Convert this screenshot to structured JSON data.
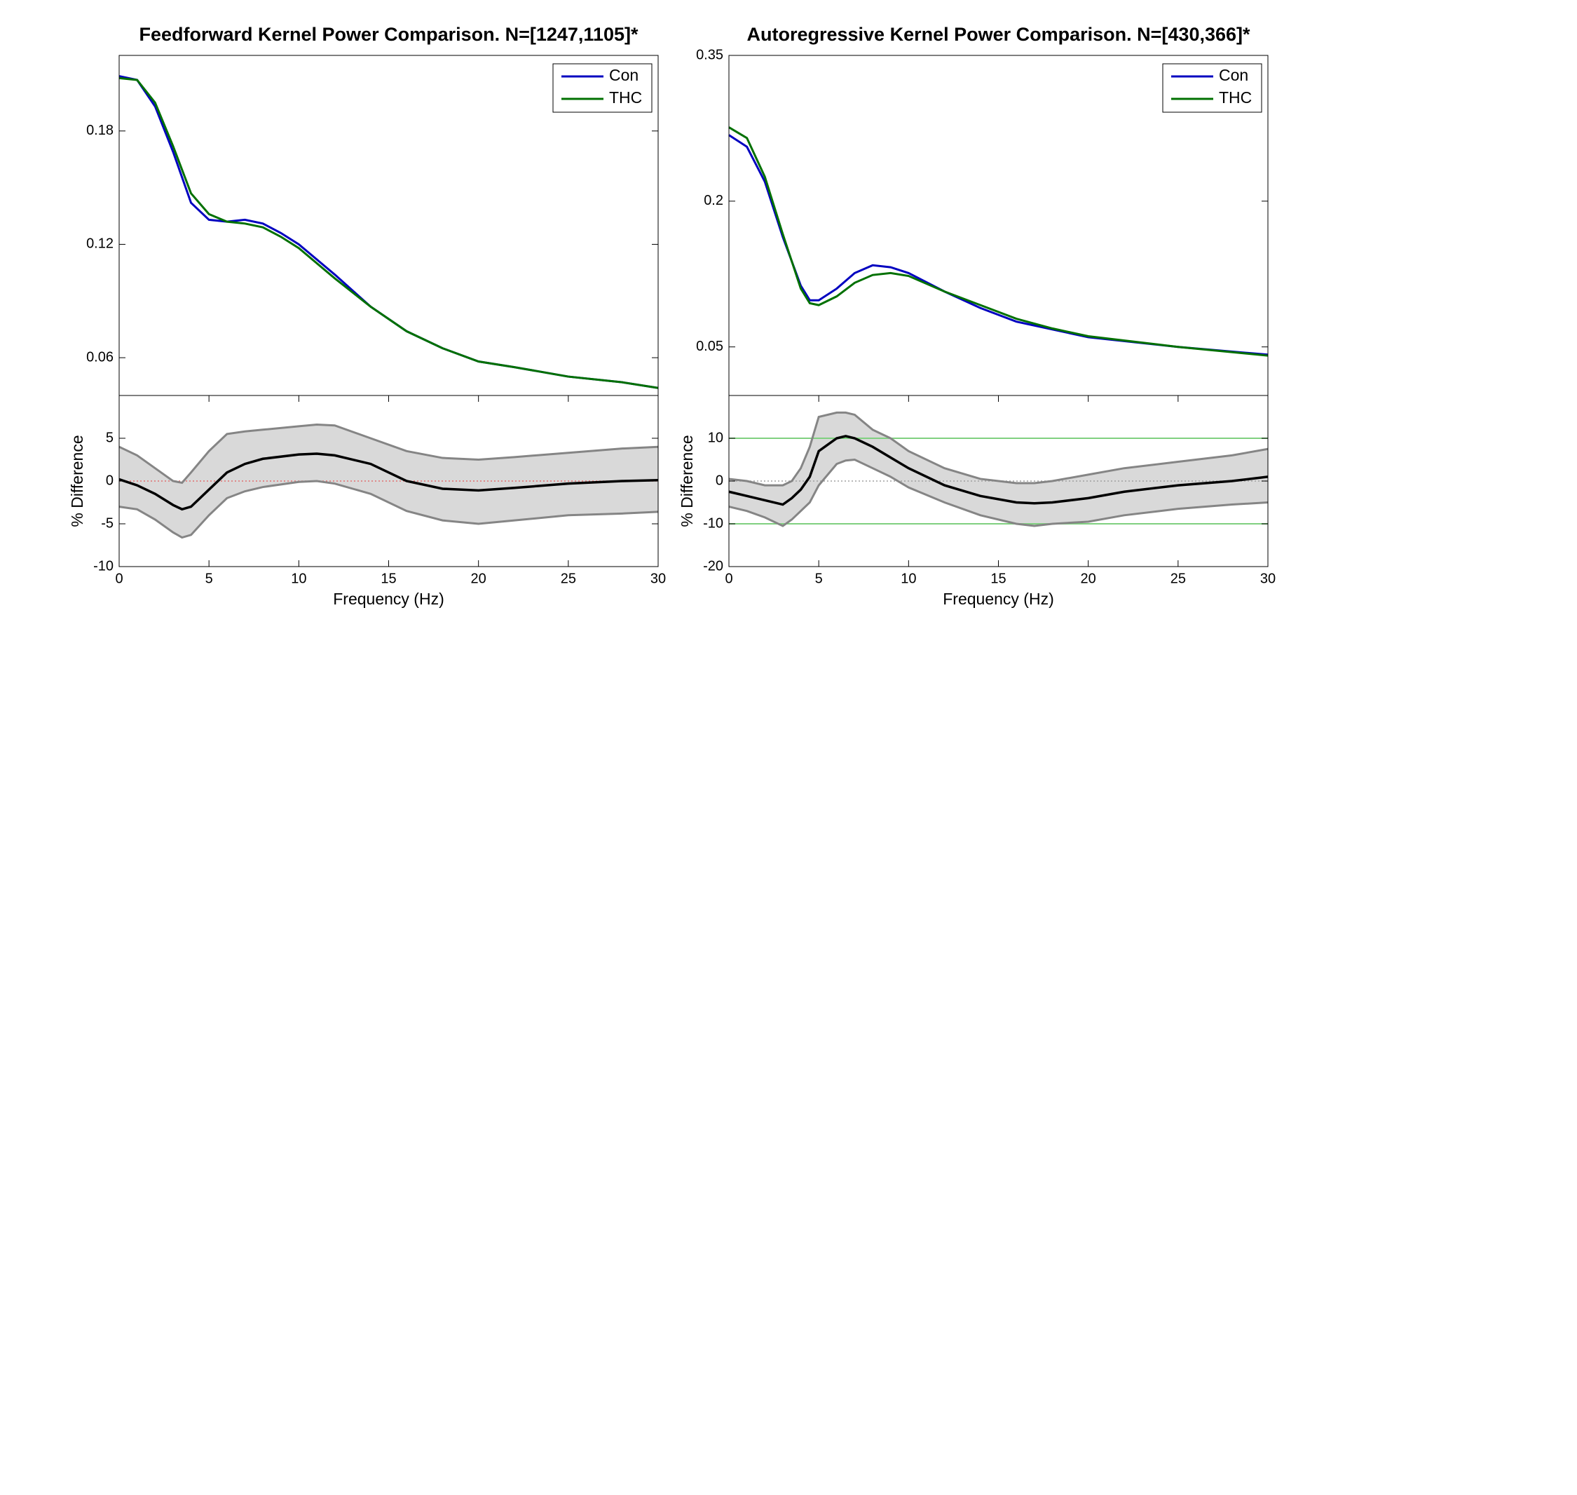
{
  "chart_data": [
    {
      "type": "line",
      "title": "Feedforward Kernel Power Comparison. N=[1247,1105]*",
      "x": [
        0,
        1,
        2,
        3,
        4,
        5,
        6,
        7,
        8,
        9,
        10,
        12,
        14,
        16,
        18,
        20,
        22,
        25,
        28,
        30
      ],
      "series": [
        {
          "name": "Con",
          "color": "#0000c0",
          "values": [
            0.209,
            0.207,
            0.193,
            0.169,
            0.142,
            0.133,
            0.132,
            0.133,
            0.131,
            0.126,
            0.12,
            0.104,
            0.087,
            0.074,
            0.065,
            0.058,
            0.055,
            0.05,
            0.047,
            0.044
          ]
        },
        {
          "name": "THC",
          "color": "#007000",
          "values": [
            0.208,
            0.207,
            0.195,
            0.172,
            0.147,
            0.136,
            0.132,
            0.131,
            0.129,
            0.124,
            0.118,
            0.102,
            0.087,
            0.074,
            0.065,
            0.058,
            0.055,
            0.05,
            0.047,
            0.044
          ]
        }
      ],
      "xlim": [
        0,
        30
      ],
      "ylim": [
        0.04,
        0.22
      ],
      "yticks": [
        0.06,
        0.12,
        0.18
      ],
      "legend": "upper right"
    },
    {
      "type": "band",
      "ylabel": "% Difference",
      "xlabel": "Frequency (Hz)",
      "x": [
        0,
        1,
        2,
        3,
        3.5,
        4,
        5,
        6,
        7,
        8,
        10,
        11,
        12,
        14,
        16,
        18,
        20,
        22,
        25,
        28,
        30
      ],
      "series": [
        {
          "color": "#000000",
          "values": [
            0.2,
            -0.5,
            -1.5,
            -2.8,
            -3.3,
            -3,
            -1,
            1,
            2,
            2.6,
            3.1,
            3.2,
            3,
            2,
            0,
            -0.9,
            -1.1,
            -0.8,
            -0.3,
            0,
            0.1
          ]
        },
        {
          "color": "#858585",
          "values": [
            4,
            3,
            1.5,
            0,
            -0.2,
            1,
            3.5,
            5.5,
            5.8,
            6,
            6.4,
            6.6,
            6.5,
            5,
            3.5,
            2.7,
            2.5,
            2.8,
            3.3,
            3.8,
            4
          ]
        },
        {
          "color": "#858585",
          "values": [
            -3,
            -3.3,
            -4.5,
            -6,
            -6.6,
            -6.3,
            -4,
            -2,
            -1.2,
            -0.7,
            -0.1,
            0,
            -0.3,
            -1.5,
            -3.5,
            -4.6,
            -5,
            -4.6,
            -4,
            -3.8,
            -3.6
          ]
        }
      ],
      "band_fill": "#d9d9d9",
      "zero_line_color": "#e07070",
      "xlim": [
        0,
        30
      ],
      "xticks": [
        0,
        5,
        10,
        15,
        20,
        25,
        30
      ],
      "ylim": [
        -10,
        10
      ],
      "yticks": [
        -10,
        -5,
        0,
        5
      ]
    },
    {
      "type": "line",
      "title": "Autoregressive Kernel Power Comparison. N=[430,366]*",
      "x": [
        0,
        1,
        2,
        3,
        4,
        4.5,
        5,
        6,
        7,
        8,
        9,
        10,
        12,
        14,
        16,
        18,
        20,
        25,
        30
      ],
      "series": [
        {
          "name": "Con",
          "color": "#0000c0",
          "values": [
            0.268,
            0.256,
            0.22,
            0.163,
            0.113,
            0.098,
            0.098,
            0.11,
            0.126,
            0.134,
            0.132,
            0.126,
            0.107,
            0.09,
            0.076,
            0.068,
            0.06,
            0.05,
            0.042
          ]
        },
        {
          "name": "THC",
          "color": "#007000",
          "values": [
            0.276,
            0.265,
            0.225,
            0.166,
            0.11,
            0.095,
            0.093,
            0.102,
            0.116,
            0.124,
            0.126,
            0.123,
            0.107,
            0.093,
            0.079,
            0.069,
            0.061,
            0.05,
            0.041
          ]
        }
      ],
      "xlim": [
        0,
        30
      ],
      "ylim": [
        0,
        0.35
      ],
      "yticks": [
        0.05,
        0.2,
        0.35
      ],
      "legend": "upper right"
    },
    {
      "type": "band",
      "ylabel": "% Difference",
      "xlabel": "Frequency (Hz)",
      "x": [
        0,
        1,
        2,
        3,
        3.5,
        4,
        4.5,
        5,
        6,
        6.5,
        7,
        8,
        9,
        10,
        12,
        14,
        16,
        17,
        18,
        20,
        22,
        25,
        28,
        30
      ],
      "series": [
        {
          "color": "#000000",
          "values": [
            -2.5,
            -3.5,
            -4.5,
            -5.5,
            -4,
            -2,
            1,
            7,
            10,
            10.5,
            10,
            8,
            5.5,
            3,
            -1,
            -3.5,
            -5,
            -5.2,
            -5,
            -4,
            -2.5,
            -1,
            0,
            1
          ]
        },
        {
          "color": "#858585",
          "values": [
            0.5,
            0,
            -1,
            -1,
            0,
            3,
            8,
            15,
            16,
            16,
            15.5,
            12,
            10,
            7,
            3,
            0.5,
            -0.5,
            -0.5,
            0,
            1.5,
            3,
            4.5,
            6,
            7.5
          ]
        },
        {
          "color": "#858585",
          "values": [
            -6,
            -7,
            -8.5,
            -10.5,
            -9,
            -7,
            -5,
            -1,
            4,
            4.8,
            5,
            3,
            1,
            -1.5,
            -5,
            -8,
            -10,
            -10.5,
            -10,
            -9.5,
            -8,
            -6.5,
            -5.5,
            -5
          ]
        }
      ],
      "band_fill": "#d9d9d9",
      "zero_line_color": "#a0a0a0",
      "hlines": [
        -10,
        10
      ],
      "hline_color": "#80d080",
      "xlim": [
        0,
        30
      ],
      "xticks": [
        0,
        5,
        10,
        15,
        20,
        25,
        30
      ],
      "ylim": [
        -20,
        20
      ],
      "yticks": [
        -20,
        -10,
        0,
        10
      ]
    }
  ]
}
